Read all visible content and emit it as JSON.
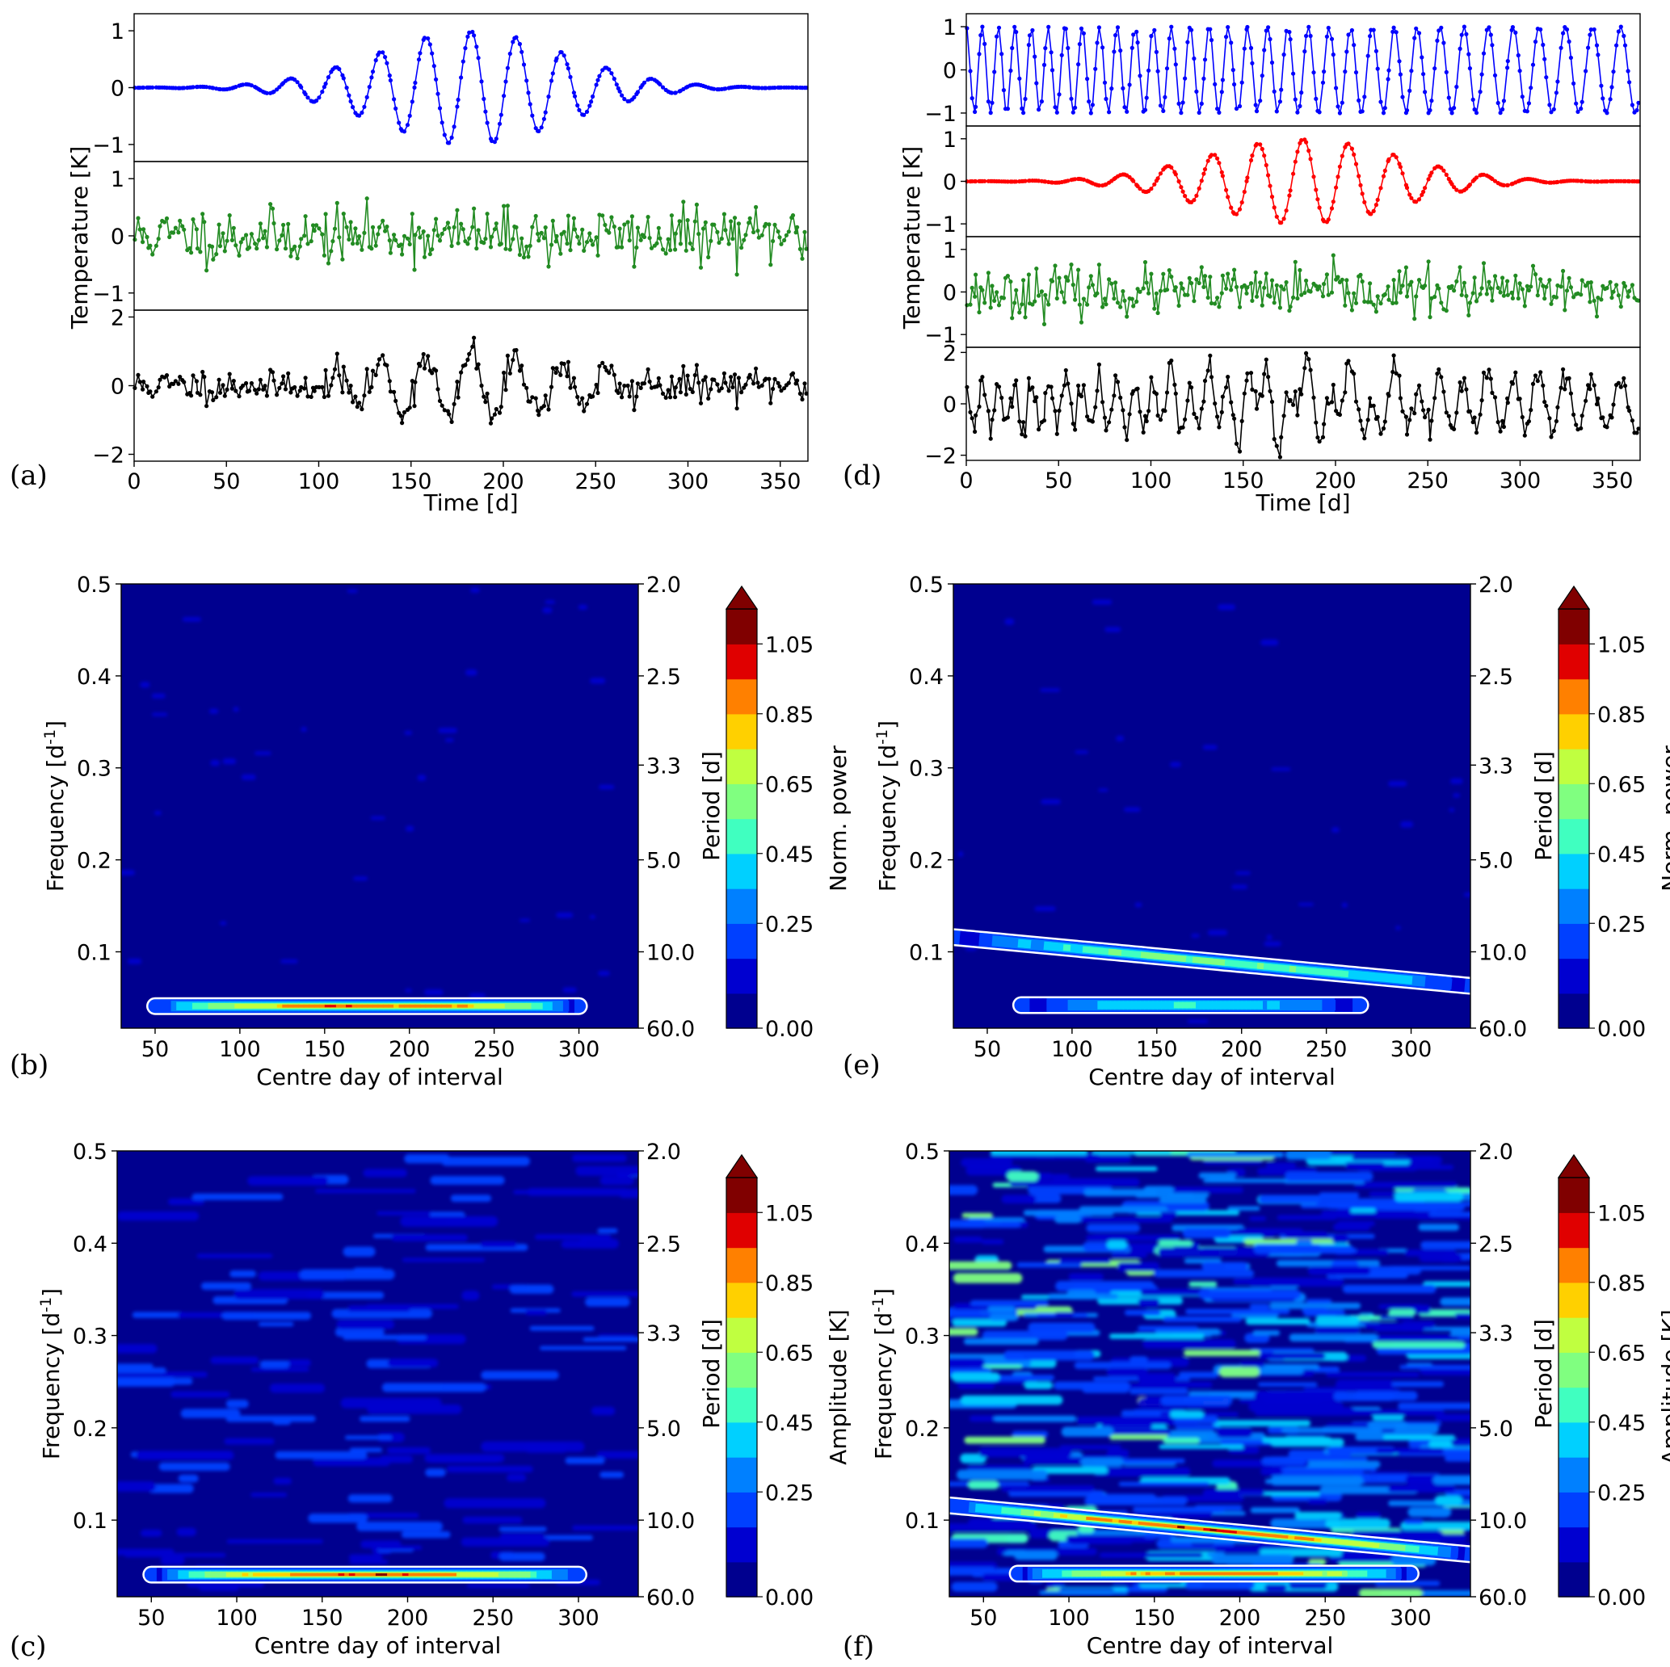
{
  "panel_labels": [
    "(a)",
    "(b)",
    "(c)",
    "(d)",
    "(e)",
    "(f)"
  ],
  "common": {
    "time_axis_label": "Time [d]",
    "temp_axis_label": "Temperature [K]",
    "centre_axis_label": "Centre day of interval",
    "freq_axis_label": "Frequency [d",
    "freq_axis_sup": "-1",
    "freq_axis_close": "]",
    "period_axis_label": "Period [d]",
    "time_ticks": [
      "0",
      "50",
      "100",
      "150",
      "200",
      "250",
      "300",
      "350"
    ],
    "centre_ticks": [
      "50",
      "100",
      "150",
      "200",
      "250",
      "300"
    ],
    "freq_ticks": [
      "0.1",
      "0.2",
      "0.3",
      "0.4",
      "0.5"
    ],
    "period_ticks": [
      "2.0",
      "2.5",
      "3.3",
      "5.0",
      "10.0",
      "60.0"
    ],
    "colorbar_ticks": [
      "0.00",
      "0.25",
      "0.45",
      "0.65",
      "0.85",
      "1.05"
    ]
  },
  "chart_data": [
    {
      "panel": "(a)",
      "type": "line",
      "xlabel": "Time [d]",
      "ylabel": "Temperature [K]",
      "xlim": [
        0,
        365
      ],
      "subplots": [
        {
          "color": "#0000ff",
          "ylim": [
            -1.3,
            1.3
          ],
          "yticks": [
            "1",
            "0",
            "−1"
          ],
          "description_values": "Gaussian-modulated sinusoid, period 24.5 d, peak amplitude 1.0 K at day 182"
        },
        {
          "color": "#228b22",
          "ylim": [
            -1.3,
            1.3
          ],
          "yticks": [
            "1",
            "0",
            "−1"
          ],
          "description_values": "random noise, std ~0.25 K"
        },
        {
          "color": "#000000",
          "ylim": [
            -2.2,
            2.2
          ],
          "yticks": [
            "2",
            "0",
            "−2"
          ],
          "description_values": "sum of signal and noise"
        }
      ]
    },
    {
      "panel": "(b)",
      "type": "heatmap",
      "xlabel": "Centre day of interval",
      "ylabel": "Frequency [d-1]",
      "y2label": "Period [d]",
      "colorbar_label": "Norm. power",
      "xlim": [
        30,
        335
      ],
      "ylim": [
        0.017,
        0.5
      ],
      "ridges": [
        {
          "start": 50,
          "end": 300,
          "freq": 0.041,
          "peak": 1.0
        }
      ]
    },
    {
      "panel": "(c)",
      "type": "heatmap",
      "xlabel": "Centre day of interval",
      "ylabel": "Frequency [d-1]",
      "y2label": "Period [d]",
      "colorbar_label": "Amplitude [K]",
      "xlim": [
        30,
        335
      ],
      "ylim": [
        0.017,
        0.5
      ],
      "ridges": [
        {
          "start": 50,
          "end": 300,
          "freq": 0.041,
          "peak": 1.0
        }
      ]
    },
    {
      "panel": "(d)",
      "type": "line",
      "xlabel": "Time [d]",
      "ylabel": "Temperature [K]",
      "xlim": [
        0,
        365
      ],
      "subplots": [
        {
          "color": "#0000ff",
          "ylim": [
            -1.3,
            1.3
          ],
          "yticks": [
            "1",
            "0",
            "−1"
          ],
          "description_values": "constant amplitude 1.0 K sinusoid with chirped frequency 0.12 to 0.06 d-1"
        },
        {
          "color": "#ff0000",
          "ylim": [
            -1.3,
            1.3
          ],
          "yticks": [
            "1",
            "0",
            "−1"
          ],
          "description_values": "Gaussian-modulated sinusoid, period 24.5 d, peak amplitude 1.0 K"
        },
        {
          "color": "#228b22",
          "ylim": [
            -1.3,
            1.3
          ],
          "yticks": [
            "1",
            "0",
            "−1"
          ],
          "description_values": "random noise"
        },
        {
          "color": "#000000",
          "ylim": [
            -2.2,
            2.2
          ],
          "yticks": [
            "2",
            "0",
            "−2"
          ],
          "description_values": "sum"
        }
      ]
    },
    {
      "panel": "(e)",
      "type": "heatmap",
      "xlabel": "Centre day of interval",
      "ylabel": "Frequency [d-1]",
      "y2label": "Period [d]",
      "colorbar_label": "Norm. power",
      "xlim": [
        30,
        335
      ],
      "ylim": [
        0.017,
        0.5
      ],
      "ridges": [
        {
          "start": 30,
          "end": 335,
          "freq_start": 0.116,
          "freq_end": 0.063,
          "peak": 0.6
        },
        {
          "start": 70,
          "end": 270,
          "freq": 0.042,
          "peak": 0.45
        }
      ]
    },
    {
      "panel": "(f)",
      "type": "heatmap",
      "xlabel": "Centre day of interval",
      "ylabel": "Frequency [d-1]",
      "y2label": "Period [d]",
      "colorbar_label": "Amplitude [K]",
      "xlim": [
        30,
        335
      ],
      "ylim": [
        0.017,
        0.5
      ],
      "ridges": [
        {
          "start": 30,
          "end": 335,
          "freq_start": 0.116,
          "freq_end": 0.063,
          "peak": 1.0
        },
        {
          "start": 70,
          "end": 300,
          "freq": 0.042,
          "peak": 0.95
        }
      ]
    }
  ],
  "colors": {
    "background_cmap_low": "#00008f",
    "levels": [
      "#00008f",
      "#0000d0",
      "#0040ff",
      "#0080ff",
      "#00d0ff",
      "#40ffc0",
      "#80ff80",
      "#c0ff40",
      "#ffd000",
      "#ff8000",
      "#e00000",
      "#800000"
    ]
  }
}
